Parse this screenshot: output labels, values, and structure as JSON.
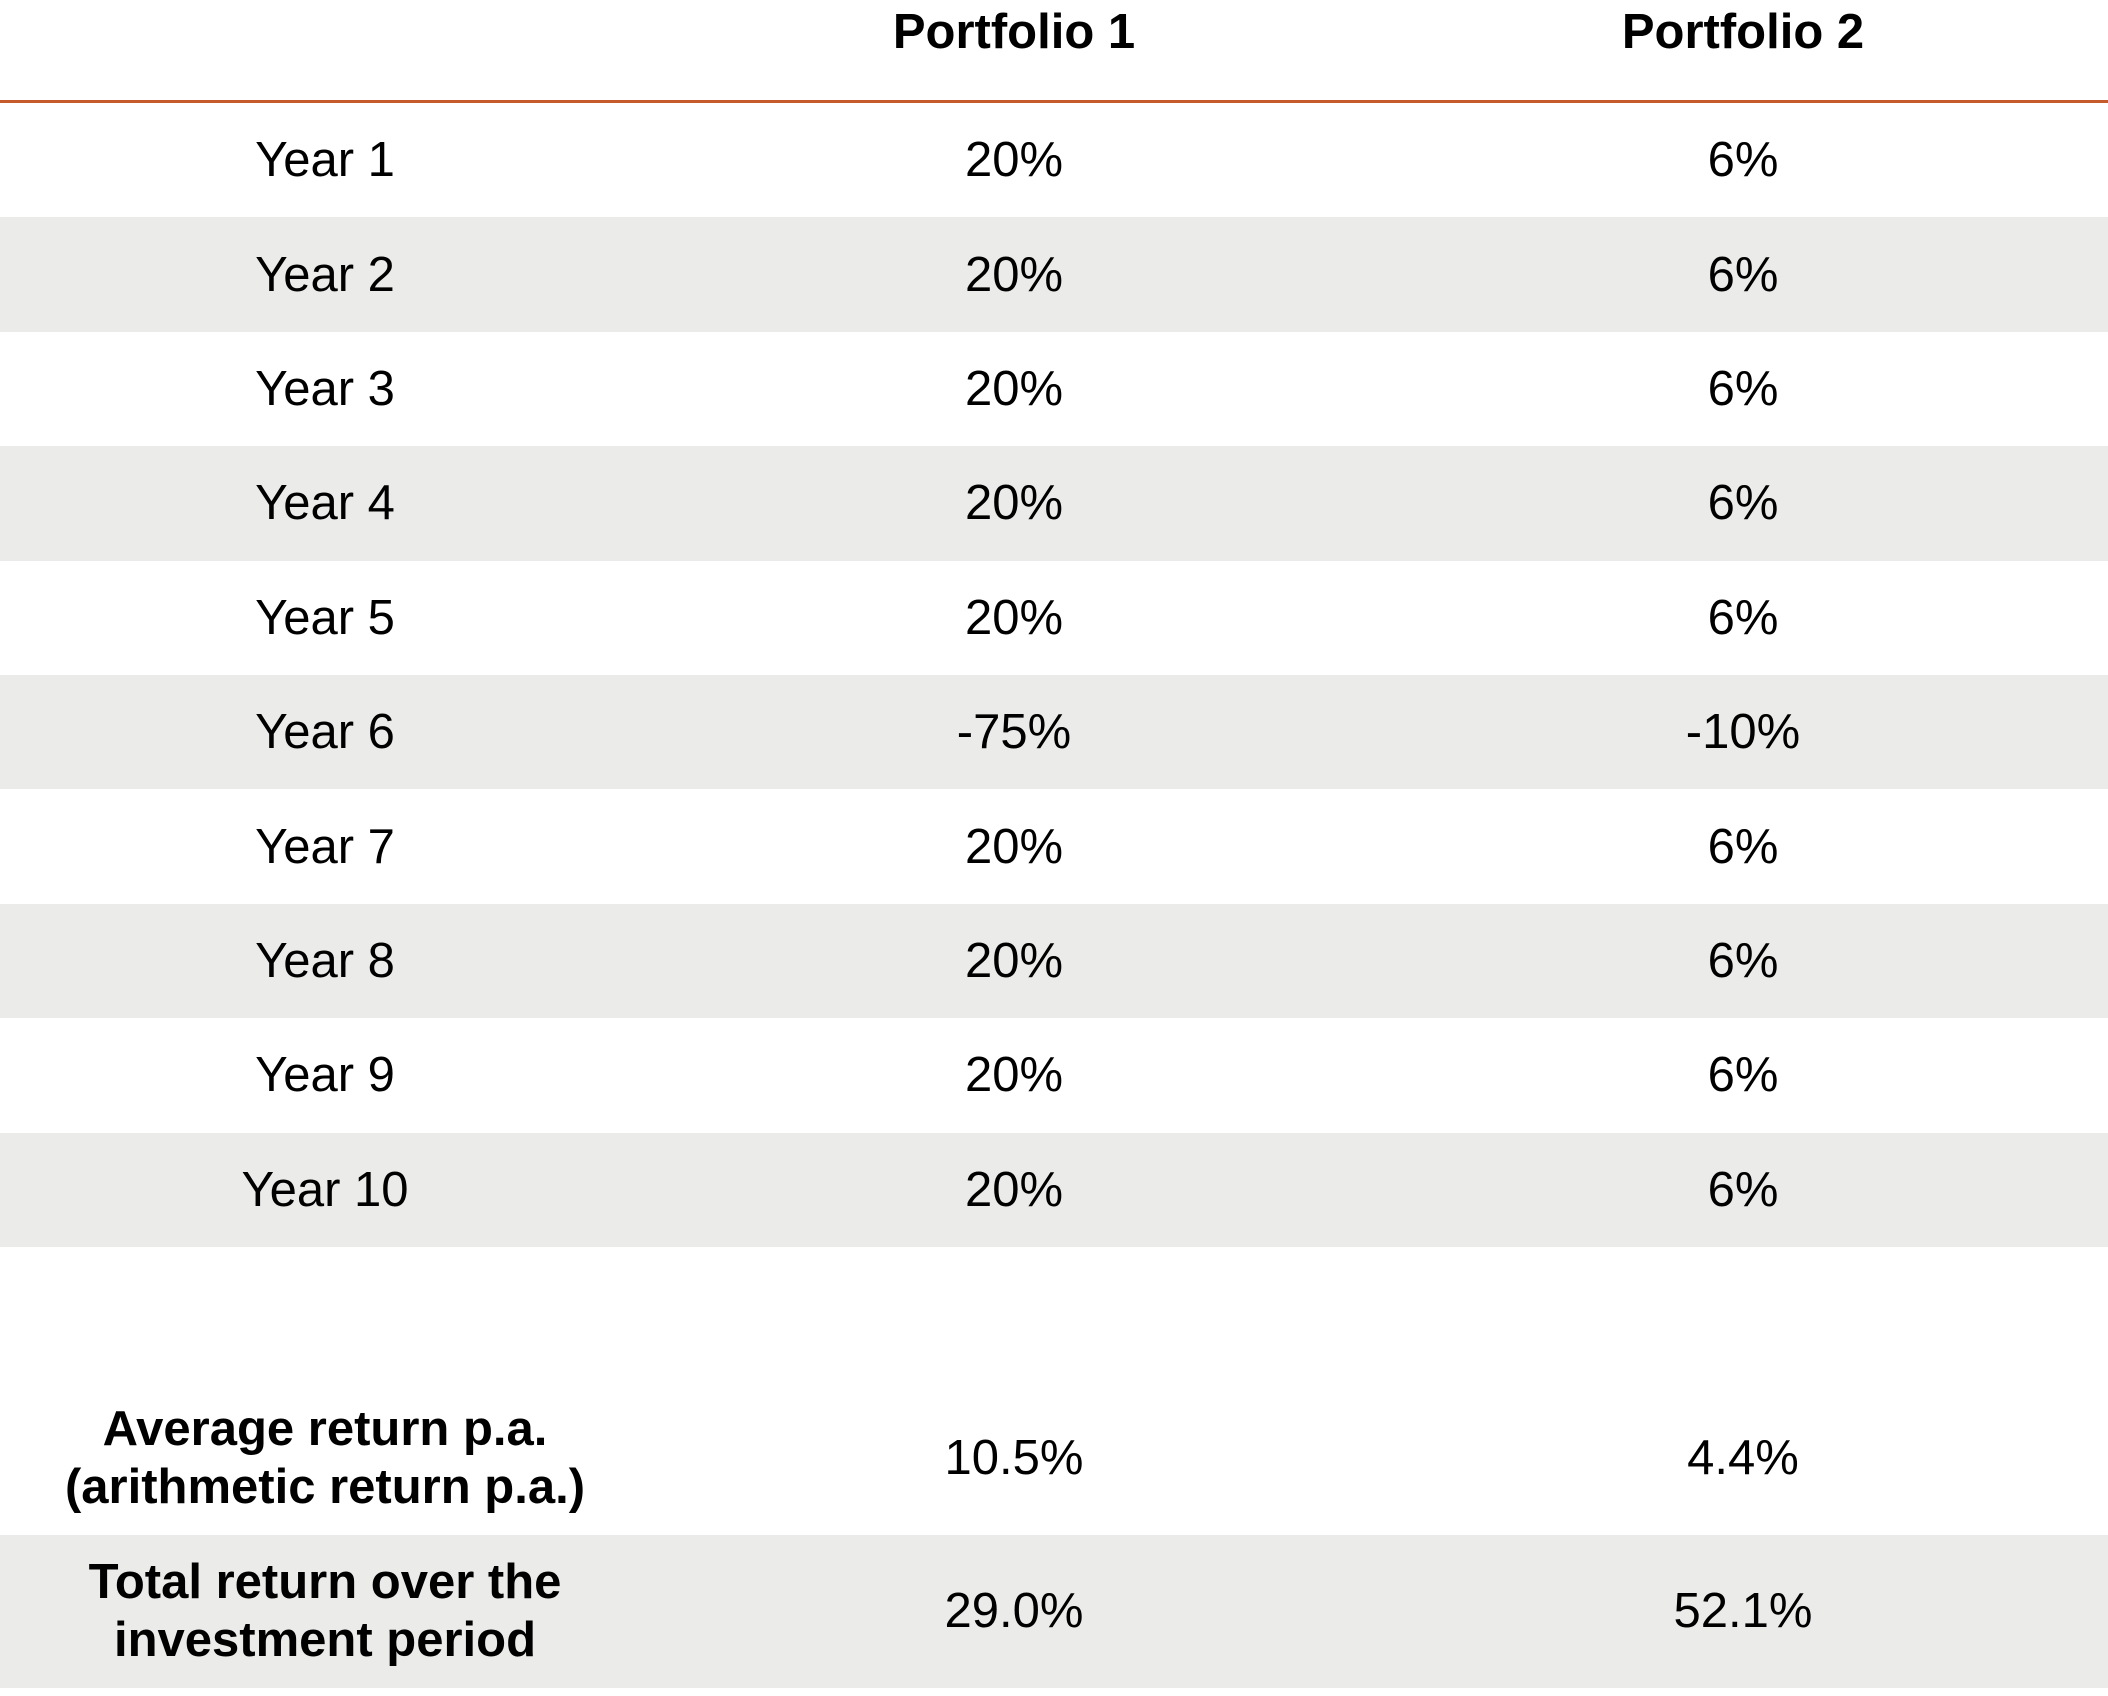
{
  "table": {
    "headers": [
      "",
      "Portfolio 1",
      "Portfolio 2"
    ],
    "rows": [
      [
        "Year 1",
        "20%",
        "6%"
      ],
      [
        "Year 2",
        "20%",
        "6%"
      ],
      [
        "Year 3",
        "20%",
        "6%"
      ],
      [
        "Year 4",
        "20%",
        "6%"
      ],
      [
        "Year 5",
        "20%",
        "6%"
      ],
      [
        "Year 6",
        "-75%",
        "-10%"
      ],
      [
        "Year 7",
        "20%",
        "6%"
      ],
      [
        "Year 8",
        "20%",
        "6%"
      ],
      [
        "Year 9",
        "20%",
        "6%"
      ],
      [
        "Year 10",
        "20%",
        "6%"
      ]
    ],
    "summary": [
      {
        "label_line1": "Average return p.a.",
        "label_line2": "(arithmetic return p.a.)",
        "p1": "10.5%",
        "p2": "4.4%"
      },
      {
        "label_line1": "Total return over the",
        "label_line2": "investment period",
        "p1": "29.0%",
        "p2": "52.1%"
      }
    ]
  },
  "colors": {
    "header_rule": "#c55a2b",
    "band_shade": "#ebebe9"
  }
}
